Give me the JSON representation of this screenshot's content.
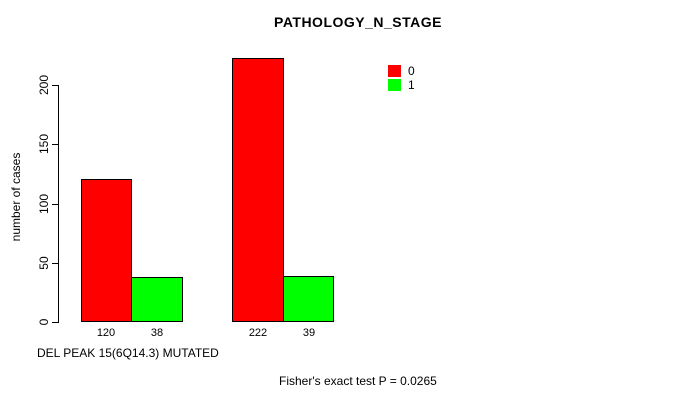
{
  "chart_data": {
    "type": "bar",
    "title": "PATHOLOGY_N_STAGE",
    "ylabel": "number of cases",
    "xlabel": "DEL PEAK 15(6Q14.3) MUTATED",
    "categories": [
      "",
      ""
    ],
    "series": [
      {
        "name": "0",
        "color": "#ff0000",
        "values": [
          120,
          222
        ]
      },
      {
        "name": "1",
        "color": "#00ff00",
        "values": [
          38,
          39
        ]
      }
    ],
    "bar_value_labels": [
      "120",
      "38",
      "222",
      "39"
    ],
    "yticks": [
      "0",
      "50",
      "100",
      "150",
      "200"
    ],
    "ylim": [
      0,
      222
    ],
    "grid": false,
    "legend_position": "top-right",
    "annotation": "Fisher's exact test P = 0.0265"
  }
}
